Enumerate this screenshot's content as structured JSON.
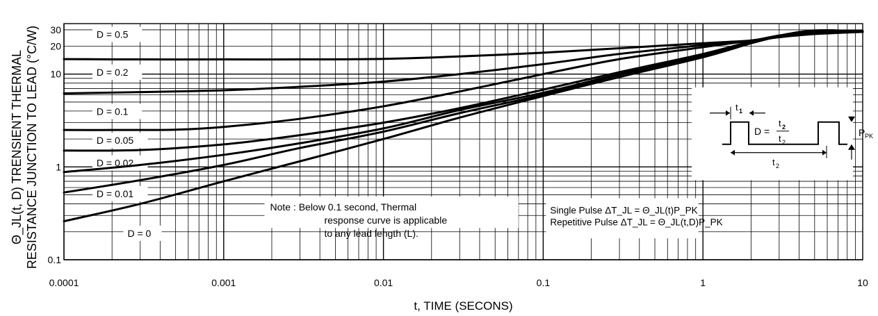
{
  "chart_data": {
    "type": "line",
    "title": "",
    "xlabel": "t,  TIME (SECONS)",
    "ylabel_lines": [
      "Θ_JL(t, D) TRENSIENT THERMAL",
      "RESISTANCE JUNCTION TO LEAD (°C/W)"
    ],
    "x_scale": "log",
    "y_scale": "log",
    "xlim": [
      0.0001,
      10
    ],
    "ylim": [
      0.1,
      35
    ],
    "x_ticks": [
      {
        "value": 0.0001,
        "label": "0.0001"
      },
      {
        "value": 0.001,
        "label": "0.001"
      },
      {
        "value": 0.01,
        "label": "0.01"
      },
      {
        "value": 0.1,
        "label": "0.1"
      },
      {
        "value": 1,
        "label": "1"
      },
      {
        "value": 10,
        "label": "10"
      }
    ],
    "y_ticks": [
      {
        "value": 0.1,
        "label": "0.1"
      },
      {
        "value": 1,
        "label": "1"
      },
      {
        "value": 10,
        "label": "10"
      },
      {
        "value": 20,
        "label": "20"
      },
      {
        "value": 30,
        "label": "30"
      }
    ],
    "grid": true,
    "series": [
      {
        "name": "D = 0.5",
        "points": [
          [
            0.0001,
            14.5
          ],
          [
            0.0003,
            14.4
          ],
          [
            0.001,
            14.4
          ],
          [
            0.003,
            14.4
          ],
          [
            0.01,
            14.6
          ],
          [
            0.03,
            15.5
          ],
          [
            0.1,
            17
          ],
          [
            0.3,
            19
          ],
          [
            1,
            21.5
          ],
          [
            2,
            23
          ],
          [
            3,
            25
          ],
          [
            5,
            27
          ],
          [
            10,
            28.5
          ]
        ]
      },
      {
        "name": "D = 0.2",
        "points": [
          [
            0.0001,
            6.2
          ],
          [
            0.0003,
            6.4
          ],
          [
            0.001,
            6.7
          ],
          [
            0.003,
            7.3
          ],
          [
            0.01,
            8.3
          ],
          [
            0.03,
            10
          ],
          [
            0.1,
            12.8
          ],
          [
            0.3,
            16.5
          ],
          [
            1,
            20.5
          ],
          [
            2,
            23
          ],
          [
            3,
            25
          ],
          [
            5,
            27.5
          ],
          [
            10,
            28.5
          ]
        ]
      },
      {
        "name": "D = 0.1",
        "points": [
          [
            0.0001,
            2.5
          ],
          [
            0.0002,
            2.5
          ],
          [
            0.0005,
            2.52
          ],
          [
            0.001,
            2.7
          ],
          [
            0.003,
            3.3
          ],
          [
            0.01,
            4.5
          ],
          [
            0.03,
            6.5
          ],
          [
            0.1,
            10
          ],
          [
            0.3,
            14.5
          ],
          [
            1,
            19.5
          ],
          [
            2,
            23
          ],
          [
            3,
            25.5
          ],
          [
            5,
            28
          ],
          [
            10,
            28.5
          ]
        ]
      },
      {
        "name": "D = 0.05",
        "points": [
          [
            0.0001,
            1.5
          ],
          [
            0.0003,
            1.52
          ],
          [
            0.001,
            1.75
          ],
          [
            0.003,
            2.2
          ],
          [
            0.01,
            3
          ],
          [
            0.03,
            4.3
          ],
          [
            0.1,
            6.8
          ],
          [
            0.3,
            10.5
          ],
          [
            1,
            16.5
          ],
          [
            2,
            22.5
          ],
          [
            3,
            26
          ],
          [
            5,
            28.5
          ],
          [
            10,
            29
          ]
        ]
      },
      {
        "name": "D = 0.02",
        "points": [
          [
            0.0001,
            0.88
          ],
          [
            0.0003,
            1.05
          ],
          [
            0.001,
            1.35
          ],
          [
            0.003,
            1.8
          ],
          [
            0.01,
            2.6
          ],
          [
            0.03,
            4.1
          ],
          [
            0.1,
            6.3
          ],
          [
            0.3,
            10
          ],
          [
            1,
            16
          ],
          [
            2,
            22
          ],
          [
            3,
            26
          ],
          [
            5,
            29
          ],
          [
            10,
            29
          ]
        ]
      },
      {
        "name": "D = 0.01",
        "points": [
          [
            0.0001,
            0.53
          ],
          [
            0.0003,
            0.72
          ],
          [
            0.001,
            1.05
          ],
          [
            0.003,
            1.6
          ],
          [
            0.01,
            2.4
          ],
          [
            0.03,
            3.8
          ],
          [
            0.1,
            6
          ],
          [
            0.3,
            9.8
          ],
          [
            1,
            15.5
          ],
          [
            2,
            22
          ],
          [
            3,
            26
          ],
          [
            5,
            29.5
          ],
          [
            10,
            29
          ]
        ]
      },
      {
        "name": "D = 0",
        "points": [
          [
            0.0001,
            0.26
          ],
          [
            0.0003,
            0.4
          ],
          [
            0.001,
            0.7
          ],
          [
            0.003,
            1.15
          ],
          [
            0.01,
            2
          ],
          [
            0.03,
            3.4
          ],
          [
            0.1,
            5.8
          ],
          [
            0.3,
            9.3
          ],
          [
            1,
            15.2
          ],
          [
            2,
            21.5
          ],
          [
            3,
            25.5
          ],
          [
            5,
            29.5
          ],
          [
            10,
            29
          ]
        ]
      }
    ],
    "series_labels": [
      {
        "text": "D = 0.5",
        "x": 0.00016,
        "y": 25
      },
      {
        "text": "D = 0.2",
        "x": 0.00016,
        "y": 9.8
      },
      {
        "text": "D = 0.1",
        "x": 0.00016,
        "y": 3.7
      },
      {
        "text": "D = 0.05",
        "x": 0.00016,
        "y": 1.8
      },
      {
        "text": "D = 0.02",
        "x": 0.00016,
        "y": 1.03
      },
      {
        "text": "D = 0.01",
        "x": 0.00016,
        "y": 0.48
      },
      {
        "text": "D = 0",
        "x": 0.00025,
        "y": 0.18
      }
    ],
    "annotations": {
      "note_lines": [
        "Note : Below 0.1 second, Thermal",
        "response curve is applicable",
        "to any lead length (L)."
      ],
      "pulse_lines": [
        "Single Pulse  ΔT_JL = Θ_JL(t)P_PK",
        "Repetitive Pulse ΔT_JL = Θ_JL(t,D)P_PK"
      ],
      "inset": {
        "t1": "t",
        "t1_sub": "1",
        "t2": "t",
        "t2_sub": "2",
        "d_label": "D =",
        "ppk": "P",
        "ppk_sub": "PK"
      }
    }
  }
}
